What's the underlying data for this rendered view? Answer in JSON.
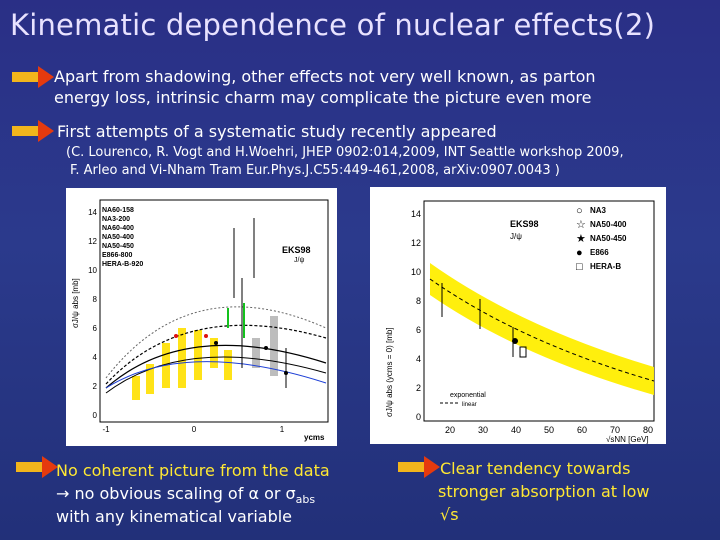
{
  "title": "Kinematic dependence of nuclear effects(2)",
  "bullets": [
    {
      "line1": "Apart from shadowing, other effects not very well known, as parton",
      "line2": "energy loss, intrinsic charm may complicate the picture even more"
    },
    {
      "line1": "First attempts of a systematic study recently appeared"
    }
  ],
  "reference": {
    "line1": "(C. Lourenco, R. Vogt and H.Woehri, JHEP 0902:014,2009, INT Seattle workshop 2009,",
    "line2": "F. Arleo and Vi-Nham Tram Eur.Phys.J.C55:449-461,2008, arXiv:0907.0043 )"
  },
  "left_plot": {
    "ylabel": "σJ/ψ abs [mb]",
    "xlabel": "ycms",
    "model": "EKS98",
    "particle": "J/ψ",
    "legend": [
      "NA60-158",
      "NA3-200",
      "NA60-400",
      "NA50-400",
      "NA50-450",
      "E866-800",
      "HERA-B-920"
    ],
    "yticks": [
      "14",
      "12",
      "10",
      "8",
      "6",
      "4",
      "2",
      "0"
    ],
    "xticks": [
      "-1",
      "0",
      "1"
    ]
  },
  "right_plot": {
    "ylabel": "σJ/ψ abs (ycms = 0) [mb]",
    "xlabel": "√sNN [GeV]",
    "model": "EKS98",
    "particle": "J/ψ",
    "legend": [
      "NA3",
      "NA50-400",
      "NA50-450",
      "E866",
      "HERA-B"
    ],
    "fit_labels": [
      "exponential",
      "linear"
    ],
    "yticks": [
      "14",
      "12",
      "10",
      "8",
      "6",
      "4",
      "2",
      "0"
    ],
    "xticks": [
      "20",
      "30",
      "40",
      "50",
      "60",
      "70",
      "80"
    ]
  },
  "bottom_left": {
    "line1": "No coherent picture from the data",
    "line2": "→ no obvious scaling of α or σ",
    "line2_sub": "abs",
    "line3": "with any kinematical variable"
  },
  "bottom_right": {
    "line1": "Clear tendency towards",
    "line2": "stronger absorption at low",
    "line3": "√s"
  },
  "colors": {
    "accent_text": "#ffe833",
    "arrow_shaft": "#f2b51c",
    "arrow_head": "#e53a0e"
  }
}
